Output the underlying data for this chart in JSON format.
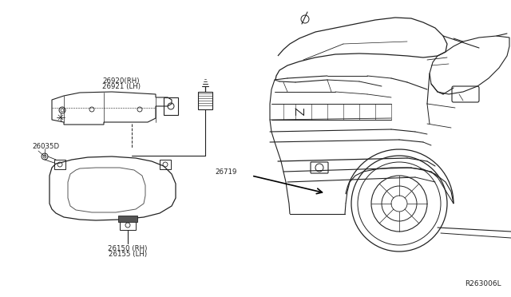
{
  "background_color": "#ffffff",
  "fig_width": 6.4,
  "fig_height": 3.72,
  "dpi": 100,
  "ref_code": "R263006L",
  "labels": {
    "26920_rh": "26920(RH)",
    "26921_lh": "26921 (LH)",
    "26035d": "26035D",
    "26150_rh": "26150 (RH)",
    "26155_lh": "26155 (LH)",
    "26719": "26719"
  },
  "text_color": "#222222",
  "line_color": "#222222"
}
